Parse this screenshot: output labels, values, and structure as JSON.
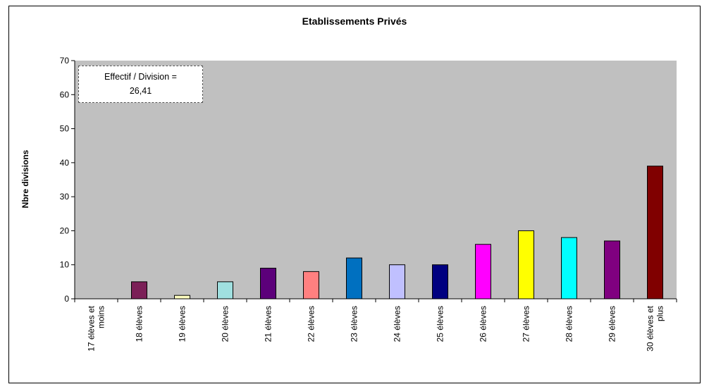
{
  "chart_data": {
    "type": "bar",
    "title": "Etablissements Privés",
    "ylabel": "Nbre divisions",
    "xlabel": "",
    "ylim": [
      0,
      70
    ],
    "yticks": [
      0,
      10,
      20,
      30,
      40,
      50,
      60,
      70
    ],
    "categories": [
      [
        "17 élèves et",
        "moins"
      ],
      [
        "18 élèves"
      ],
      [
        "19 élèves"
      ],
      [
        "20 élèves"
      ],
      [
        "21 élèves"
      ],
      [
        "22 élèves"
      ],
      [
        "23 élèves"
      ],
      [
        "24 élèves"
      ],
      [
        "25 élèves"
      ],
      [
        "26 élèves"
      ],
      [
        "27 élèves"
      ],
      [
        "28 élèves"
      ],
      [
        "29 élèves"
      ],
      [
        "30 élèves et",
        "plus"
      ]
    ],
    "values": [
      0,
      5,
      1,
      5,
      9,
      8,
      12,
      10,
      10,
      16,
      20,
      18,
      17,
      39
    ],
    "colors": [
      "#808080",
      "#7b1f57",
      "#ffffc0",
      "#a0e0e0",
      "#5c007a",
      "#ff8080",
      "#0070c0",
      "#c0c0ff",
      "#000080",
      "#ff00ff",
      "#ffff00",
      "#00ffff",
      "#800080",
      "#800000"
    ],
    "annotation": [
      "Effectif / Division =",
      "26,41"
    ],
    "plot_background": "#c0c0c0",
    "grid": false,
    "legend": "none"
  }
}
